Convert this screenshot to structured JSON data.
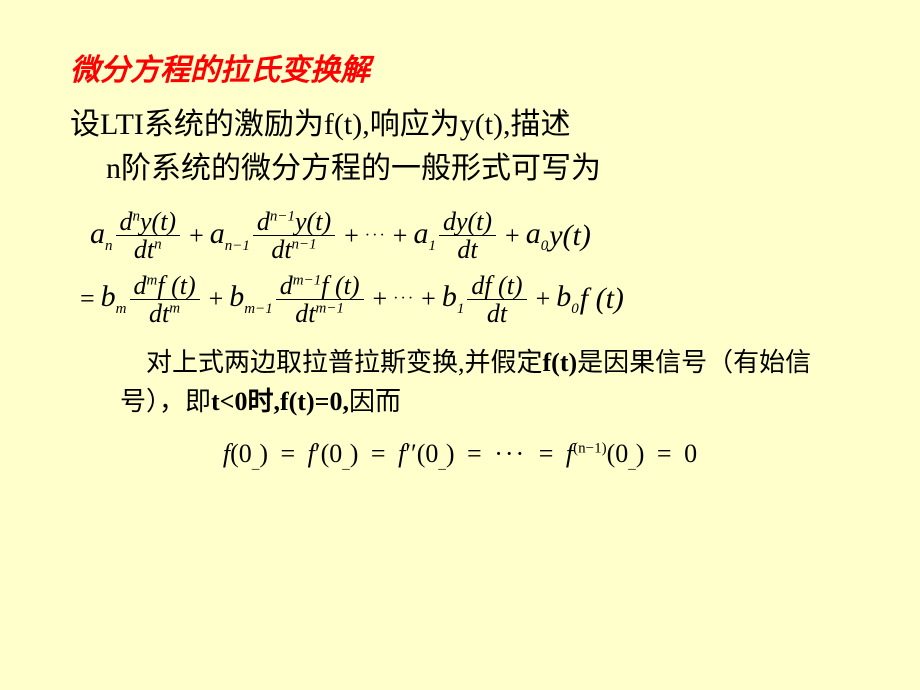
{
  "colors": {
    "background": "#ffffcc",
    "title": "#ff0000",
    "body": "#000000"
  },
  "typography": {
    "title_fontsize": 30,
    "body_fontsize": 30,
    "note_fontsize": 26,
    "eq_fontsize": 26,
    "title_family": "KaiTi",
    "body_family": "KaiTi",
    "math_family": "Times New Roman"
  },
  "title": "微分方程的拉氏变换解",
  "intro_line1": "设LTI系统的激励为f(t),响应为y(t),描述",
  "intro_line2": "n阶系统的微分方程的一般形式可写为",
  "eq1": {
    "t1_coef": "a",
    "t1_sub": "n",
    "t1_num_d": "d",
    "t1_num_exp": "n",
    "t1_num_fn": "y(t)",
    "t1_den": "dt",
    "t1_den_exp": "n",
    "plus1": "+",
    "t2_coef": "a",
    "t2_sub": "n−1",
    "t2_num_d": "d",
    "t2_num_exp": "n−1",
    "t2_num_fn": "y(t)",
    "t2_den": "dt",
    "t2_den_exp": "n−1",
    "plus2": "+",
    "dots": "···",
    "plus3": "+",
    "t3_coef": "a",
    "t3_sub": "1",
    "t3_num": "dy(t)",
    "t3_den": "dt",
    "plus4": "+",
    "t4_coef": "a",
    "t4_sub": "0",
    "t4_fn": "y(t)"
  },
  "eq2": {
    "eq": "=",
    "t1_coef": "b",
    "t1_sub": "m",
    "t1_num_d": "d",
    "t1_num_exp": "m",
    "t1_num_fn": "f (t)",
    "t1_den": "dt",
    "t1_den_exp": "m",
    "plus1": "+",
    "t2_coef": "b",
    "t2_sub": "m−1",
    "t2_num_d": "d",
    "t2_num_exp": "m−1",
    "t2_num_fn": "f (t)",
    "t2_den": "dt",
    "t2_den_exp": "m−1",
    "plus2": "+",
    "dots": "···",
    "plus3": "+",
    "t3_coef": "b",
    "t3_sub": "1",
    "t3_num": "df (t)",
    "t3_den": "dt",
    "plus4": "+",
    "t4_coef": "b",
    "t4_sub": "0",
    "t4_fn": "f (t)"
  },
  "note_part1": "对上式两边取拉普拉斯变换,并假定",
  "note_ft": "f(t)",
  "note_part2": "是因果信号（有始信号），即",
  "note_cond": "t<0时,f(t)=0,",
  "note_part3": "因而",
  "final": {
    "f": "f",
    "arg": "(0",
    "minus": "_",
    "close": ")",
    "eq": "=",
    "prime1": "′",
    "prime2": "′′",
    "dots": "···",
    "supexp": "(n−1)",
    "zero": "0"
  }
}
